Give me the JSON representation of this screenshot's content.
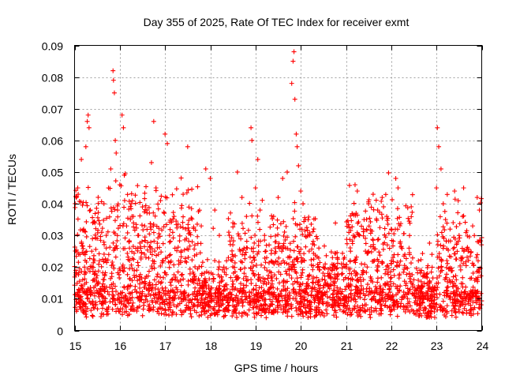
{
  "chart_data": {
    "type": "scatter",
    "title": "Day 355 of 2025, Rate Of TEC Index for receiver exmt",
    "xlabel": "GPS time / hours",
    "ylabel": "ROTI / TECUs",
    "xlim": [
      15,
      24
    ],
    "ylim": [
      0,
      0.09
    ],
    "grid": true,
    "marker": "+",
    "series_color": "#ff0000",
    "x_ticks": [
      {
        "value": 15,
        "label": "15"
      },
      {
        "value": 16,
        "label": "16"
      },
      {
        "value": 17,
        "label": "17"
      },
      {
        "value": 18,
        "label": "18"
      },
      {
        "value": 19,
        "label": "19"
      },
      {
        "value": 20,
        "label": "20"
      },
      {
        "value": 21,
        "label": "21"
      },
      {
        "value": 22,
        "label": "22"
      },
      {
        "value": 23,
        "label": "23"
      },
      {
        "value": 24,
        "label": "24"
      }
    ],
    "y_ticks": [
      {
        "value": 0,
        "label": "0"
      },
      {
        "value": 0.01,
        "label": "0.01"
      },
      {
        "value": 0.02,
        "label": "0.02"
      },
      {
        "value": 0.03,
        "label": "0.03"
      },
      {
        "value": 0.04,
        "label": "0.04"
      },
      {
        "value": 0.05,
        "label": "0.05"
      },
      {
        "value": 0.06,
        "label": "0.06"
      },
      {
        "value": 0.07,
        "label": "0.07"
      },
      {
        "value": 0.08,
        "label": "0.08"
      },
      {
        "value": 0.09,
        "label": "0.09"
      }
    ],
    "points": [
      [
        15.05,
        0.009
      ],
      [
        15.07,
        0.045
      ],
      [
        15.08,
        0.043
      ],
      [
        15.1,
        0.012
      ],
      [
        15.12,
        0.024
      ],
      [
        15.15,
        0.054
      ],
      [
        15.18,
        0.016
      ],
      [
        15.2,
        0.032
      ],
      [
        15.22,
        0.02
      ],
      [
        15.25,
        0.058
      ],
      [
        15.28,
        0.066
      ],
      [
        15.3,
        0.068
      ],
      [
        15.32,
        0.064
      ],
      [
        15.35,
        0.038
      ],
      [
        15.38,
        0.025
      ],
      [
        15.4,
        0.034
      ],
      [
        15.45,
        0.018
      ],
      [
        15.5,
        0.029
      ],
      [
        15.55,
        0.022
      ],
      [
        15.6,
        0.031
      ],
      [
        15.65,
        0.04
      ],
      [
        15.7,
        0.026
      ],
      [
        15.75,
        0.045
      ],
      [
        15.8,
        0.051
      ],
      [
        15.85,
        0.082
      ],
      [
        15.86,
        0.079
      ],
      [
        15.88,
        0.075
      ],
      [
        15.9,
        0.06
      ],
      [
        15.92,
        0.056
      ],
      [
        15.95,
        0.038
      ],
      [
        16.0,
        0.046
      ],
      [
        16.05,
        0.068
      ],
      [
        16.08,
        0.064
      ],
      [
        16.1,
        0.049
      ],
      [
        16.15,
        0.033
      ],
      [
        16.2,
        0.028
      ],
      [
        16.25,
        0.04
      ],
      [
        16.3,
        0.036
      ],
      [
        16.4,
        0.03
      ],
      [
        16.5,
        0.039
      ],
      [
        16.55,
        0.033
      ],
      [
        16.6,
        0.038
      ],
      [
        16.7,
        0.053
      ],
      [
        16.75,
        0.066
      ],
      [
        16.8,
        0.045
      ],
      [
        16.9,
        0.041
      ],
      [
        17.0,
        0.062
      ],
      [
        17.05,
        0.059
      ],
      [
        17.1,
        0.03
      ],
      [
        17.2,
        0.036
      ],
      [
        17.3,
        0.022
      ],
      [
        17.4,
        0.043
      ],
      [
        17.5,
        0.058
      ],
      [
        17.6,
        0.028
      ],
      [
        17.7,
        0.024
      ],
      [
        17.8,
        0.033
      ],
      [
        17.9,
        0.051
      ],
      [
        18.0,
        0.048
      ],
      [
        18.1,
        0.038
      ],
      [
        18.2,
        0.03
      ],
      [
        18.3,
        0.02
      ],
      [
        18.4,
        0.023
      ],
      [
        18.5,
        0.034
      ],
      [
        18.6,
        0.05
      ],
      [
        18.7,
        0.042
      ],
      [
        18.8,
        0.036
      ],
      [
        18.9,
        0.064
      ],
      [
        18.92,
        0.06
      ],
      [
        19.0,
        0.045
      ],
      [
        19.05,
        0.054
      ],
      [
        19.1,
        0.038
      ],
      [
        19.2,
        0.03
      ],
      [
        19.3,
        0.027
      ],
      [
        19.4,
        0.036
      ],
      [
        19.5,
        0.042
      ],
      [
        19.6,
        0.048
      ],
      [
        19.7,
        0.05
      ],
      [
        19.8,
        0.078
      ],
      [
        19.83,
        0.085
      ],
      [
        19.85,
        0.088
      ],
      [
        19.87,
        0.073
      ],
      [
        19.9,
        0.062
      ],
      [
        19.92,
        0.058
      ],
      [
        19.95,
        0.052
      ],
      [
        20.0,
        0.044
      ],
      [
        20.05,
        0.04
      ],
      [
        20.1,
        0.035
      ],
      [
        20.2,
        0.03
      ],
      [
        20.3,
        0.027
      ],
      [
        20.4,
        0.026
      ],
      [
        20.5,
        0.02
      ],
      [
        20.6,
        0.018
      ],
      [
        20.7,
        0.023
      ],
      [
        20.8,
        0.017
      ],
      [
        20.9,
        0.021
      ],
      [
        21.0,
        0.02
      ],
      [
        21.1,
        0.025
      ],
      [
        21.2,
        0.046
      ],
      [
        21.25,
        0.044
      ],
      [
        21.3,
        0.03
      ],
      [
        21.4,
        0.035
      ],
      [
        21.5,
        0.04
      ],
      [
        21.6,
        0.043
      ],
      [
        21.7,
        0.038
      ],
      [
        21.8,
        0.042
      ],
      [
        21.9,
        0.036
      ],
      [
        22.0,
        0.032
      ],
      [
        22.1,
        0.048
      ],
      [
        22.15,
        0.045
      ],
      [
        22.2,
        0.028
      ],
      [
        22.3,
        0.024
      ],
      [
        22.4,
        0.018
      ],
      [
        22.5,
        0.016
      ],
      [
        22.6,
        0.022
      ],
      [
        22.7,
        0.014
      ],
      [
        22.8,
        0.018
      ],
      [
        22.9,
        0.024
      ],
      [
        23.0,
        0.045
      ],
      [
        23.02,
        0.064
      ],
      [
        23.05,
        0.058
      ],
      [
        23.1,
        0.051
      ],
      [
        23.15,
        0.04
      ],
      [
        23.2,
        0.035
      ],
      [
        23.3,
        0.032
      ],
      [
        23.4,
        0.044
      ],
      [
        23.5,
        0.03
      ],
      [
        23.6,
        0.045
      ],
      [
        23.7,
        0.025
      ],
      [
        23.8,
        0.033
      ],
      [
        23.9,
        0.042
      ],
      [
        23.95,
        0.038
      ]
    ]
  }
}
